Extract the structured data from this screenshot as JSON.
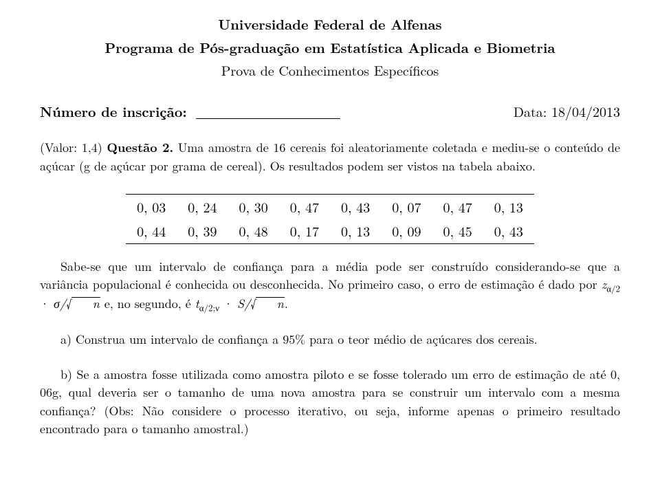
{
  "header": {
    "line1": "Universidade Federal de Alfenas",
    "line2": "Programa de Pós-graduação em Estatística Aplicada e Biometria",
    "line3": "Prova de Conhecimentos Específicos"
  },
  "inscricao": {
    "label": "Número de inscrição: ",
    "date": "Data: 18/04/2013"
  },
  "question": {
    "valor_prefix": "(Valor: 1,4) ",
    "label": "Questão 2.",
    "text": " Uma amostra de 16 cereais foi aleatoriamente coletada e mediu-se o conteúdo de açúcar (g de açúcar por grama de cereal). Os resultados podem ser vistos na tabela abaixo."
  },
  "table": {
    "rows": [
      [
        "0, 03",
        "0, 24",
        "0, 30",
        "0, 47",
        "0, 43",
        "0, 07",
        "0, 47",
        "0, 13"
      ],
      [
        "0, 44",
        "0, 39",
        "0, 48",
        "0, 17",
        "0, 13",
        "0, 09",
        "0, 45",
        "0, 43"
      ]
    ],
    "fontsize": 20,
    "rule_color": "#000000"
  },
  "explain": {
    "p1a": "Sabe-se que um intervalo de confiança para a média pode ser construído considerando-se que a variância populacional é conhecida ou desconhecida. No primeiro caso, o erro de estimação é dado por ",
    "z": "z",
    "zsub": "α/2",
    "dot1": " · ",
    "sigma": "σ/",
    "sqrt_sym1": "√",
    "n1": "n",
    "mid": " e, no segundo, é ",
    "t": "t",
    "tsub": "α/2;ν",
    "dot2": " · ",
    "S": "S/",
    "sqrt_sym2": "√",
    "n2": "n",
    "end": "."
  },
  "item_a": "a) Construa um intervalo de confiança a 95% para o teor médio de açúcares dos cereais.",
  "item_b": "b) Se a amostra fosse utilizada como amostra piloto e se fosse tolerado um erro de estimação de até 0, 06g, qual deveria ser o tamanho de uma nova amostra para se construir um intervalo com a mesma confiança? (Obs: Não considere o processo iterativo, ou seja, informe apenas o primeiro resultado encontrado para o tamanho amostral.)",
  "style": {
    "background": "#ffffff",
    "text_color": "#000000",
    "base_fontsize": 18,
    "title_fontsize": 20,
    "line_height": 1.48
  }
}
